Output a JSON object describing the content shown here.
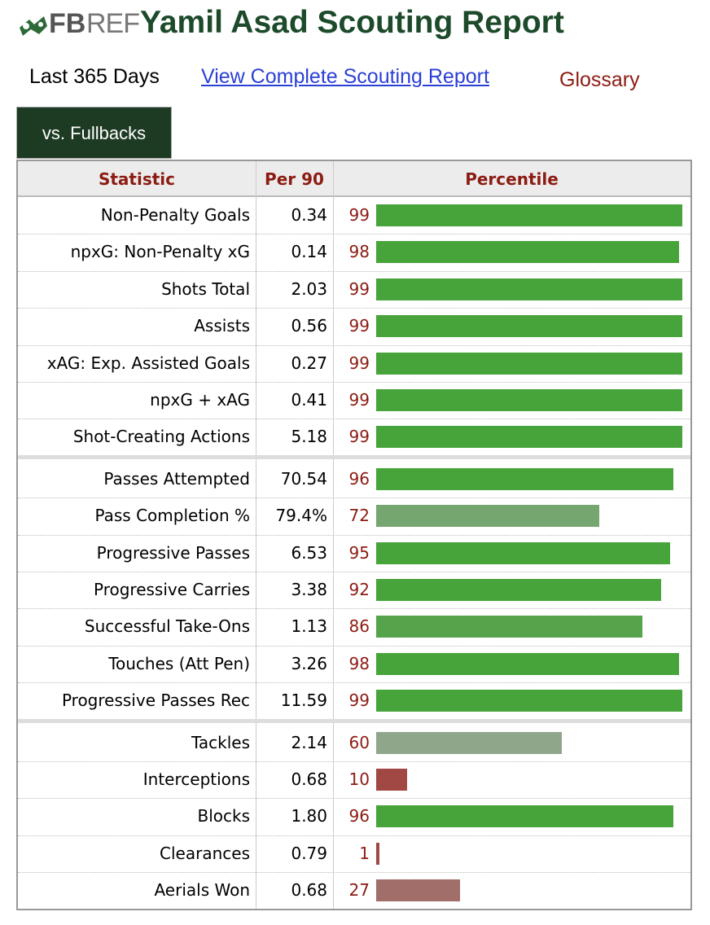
{
  "header": {
    "logo_bold": "FB",
    "logo_light": "REF",
    "title": "Yamil Asad Scouting Report"
  },
  "nav": {
    "period": "Last 365 Days",
    "link": "View Complete Scouting Report",
    "glossary": "Glossary"
  },
  "tab": "vs. Fullbacks",
  "table": {
    "columns": [
      "Statistic",
      "Per 90",
      "Percentile"
    ],
    "sections": [
      {
        "rows": [
          {
            "statistic": "Non-Penalty Goals",
            "per90": "0.34",
            "percentile": 99,
            "color": "#47a43a"
          },
          {
            "statistic": "npxG: Non-Penalty xG",
            "per90": "0.14",
            "percentile": 98,
            "color": "#47a43a"
          },
          {
            "statistic": "Shots Total",
            "per90": "2.03",
            "percentile": 99,
            "color": "#47a43a"
          },
          {
            "statistic": "Assists",
            "per90": "0.56",
            "percentile": 99,
            "color": "#47a43a"
          },
          {
            "statistic": "xAG: Exp. Assisted Goals",
            "per90": "0.27",
            "percentile": 99,
            "color": "#47a43a"
          },
          {
            "statistic": "npxG + xAG",
            "per90": "0.41",
            "percentile": 99,
            "color": "#47a43a"
          },
          {
            "statistic": "Shot-Creating Actions",
            "per90": "5.18",
            "percentile": 99,
            "color": "#47a43a"
          }
        ]
      },
      {
        "rows": [
          {
            "statistic": "Passes Attempted",
            "per90": "70.54",
            "percentile": 96,
            "color": "#47a43a"
          },
          {
            "statistic": "Pass Completion %",
            "per90": "79.4%",
            "percentile": 72,
            "color": "#75a670"
          },
          {
            "statistic": "Progressive Passes",
            "per90": "6.53",
            "percentile": 95,
            "color": "#47a43a"
          },
          {
            "statistic": "Progressive Carries",
            "per90": "3.38",
            "percentile": 92,
            "color": "#47a43a"
          },
          {
            "statistic": "Successful Take-Ons",
            "per90": "1.13",
            "percentile": 86,
            "color": "#55a34a"
          },
          {
            "statistic": "Touches (Att Pen)",
            "per90": "3.26",
            "percentile": 98,
            "color": "#47a43a"
          },
          {
            "statistic": "Progressive Passes Rec",
            "per90": "11.59",
            "percentile": 99,
            "color": "#47a43a"
          }
        ]
      },
      {
        "rows": [
          {
            "statistic": "Tackles",
            "per90": "2.14",
            "percentile": 60,
            "color": "#8fa68b"
          },
          {
            "statistic": "Interceptions",
            "per90": "0.68",
            "percentile": 10,
            "color": "#a24844"
          },
          {
            "statistic": "Blocks",
            "per90": "1.80",
            "percentile": 96,
            "color": "#47a43a"
          },
          {
            "statistic": "Clearances",
            "per90": "0.79",
            "percentile": 1,
            "color": "#a24844"
          },
          {
            "statistic": "Aerials Won",
            "per90": "0.68",
            "percentile": 27,
            "color": "#a16e6a"
          }
        ]
      }
    ]
  }
}
